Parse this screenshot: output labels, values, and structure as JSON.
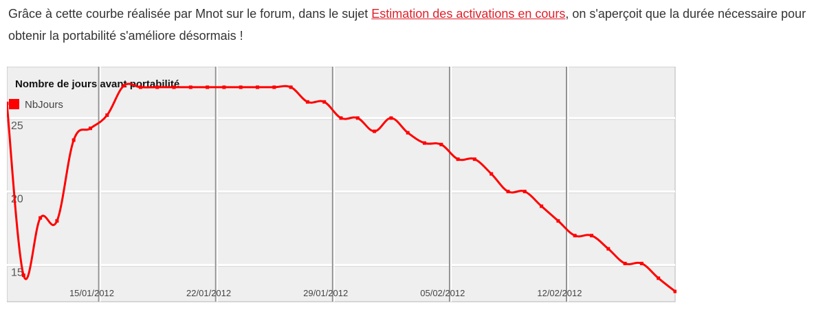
{
  "article": {
    "text_before_link": "Grâce à cette courbe réalisée par Mnot sur le forum, dans le sujet ",
    "link_text": "Estimation des activations en cours",
    "text_after_link": ", on s'aperçoit que la durée nécessaire pour obtenir la portabilité s'améliore désormais !"
  },
  "colors": {
    "link": "#e0202a",
    "series": "#ff0000",
    "plot_bg": "#efefef",
    "grid": "#d6d6d6",
    "week_line": "#909090"
  },
  "chart_data": {
    "type": "line",
    "title": "Nombre de jours avant portabilité",
    "legend_position": "top-left",
    "grid": true,
    "ylim": [
      12.5,
      28.5
    ],
    "yticks": [
      15,
      20,
      25
    ],
    "x_tick_labels": [
      "15/01/2012",
      "22/01/2012",
      "29/01/2012",
      "05/02/2012",
      "12/02/2012"
    ],
    "x_tick_index": [
      5,
      12,
      19,
      26,
      33
    ],
    "series": [
      {
        "name": "NbJours",
        "color": "#ff0000",
        "x": [
          0,
          1,
          2,
          3,
          4,
          5,
          6,
          7,
          8,
          9,
          10,
          11,
          12,
          13,
          14,
          15,
          16,
          17,
          18,
          19,
          20,
          21,
          22,
          23,
          24,
          25,
          26,
          27,
          28,
          29,
          30,
          31,
          32,
          33,
          34,
          35,
          36,
          37,
          38,
          39,
          40
        ],
        "values": [
          26,
          14.3,
          18.2,
          18,
          23.5,
          24.3,
          25.2,
          27.2,
          27.1,
          27.1,
          27.1,
          27.1,
          27.1,
          27.1,
          27.1,
          27.1,
          27.1,
          27.1,
          26.1,
          26.1,
          25,
          25,
          24.1,
          25,
          24,
          23.3,
          23.2,
          22.2,
          22.2,
          21.2,
          20,
          20,
          19,
          18,
          17,
          17,
          16.1,
          15.1,
          15.1,
          14.1,
          13.2
        ]
      }
    ]
  }
}
